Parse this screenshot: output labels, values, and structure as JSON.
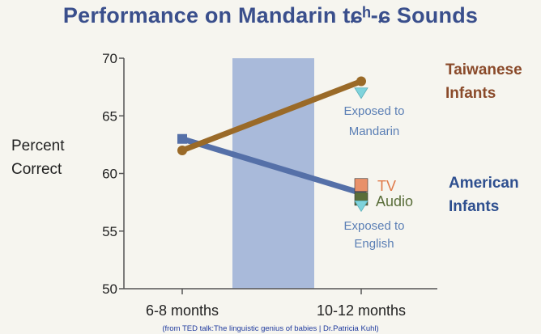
{
  "chart_data": {
    "type": "line",
    "title": "Performance on Mandarin tɕʰ-ɕ Sounds",
    "ylabel_lines": [
      "Percent",
      "Correct"
    ],
    "xlabel": "",
    "categories": [
      "6-8 months",
      "10-12 months"
    ],
    "ylim": [
      50,
      70
    ],
    "yticks": [
      50,
      55,
      60,
      65,
      70
    ],
    "grid": false,
    "shaded_region": "between 6-8 months and 10-12 months",
    "series": [
      {
        "name_lines": [
          "Taiwanese",
          "Infants"
        ],
        "color": "#9a6a28",
        "label_color": "#8a4a2a",
        "values": [
          62.0,
          68.0
        ]
      },
      {
        "name_lines": [
          "American",
          "Infants"
        ],
        "color": "#5570a8",
        "label_color": "#2e4f8f",
        "values": [
          63.0,
          58.3
        ]
      }
    ],
    "extra_points": [
      {
        "name": "Exposed to Mandarin",
        "x": "10-12 months",
        "y": 67.0,
        "shape": "triangle",
        "color": "#7fd3dc"
      },
      {
        "name": "TV",
        "x": "10-12 months",
        "y": 59.0,
        "shape": "square",
        "color": "#e8916a"
      },
      {
        "name": "Audio",
        "x": "10-12 months",
        "y": 57.8,
        "shape": "square",
        "color": "#5a6e3a"
      },
      {
        "name": "Exposed to English",
        "x": "10-12 months",
        "y": 57.2,
        "shape": "triangle",
        "color": "#7fd3dc"
      }
    ],
    "annotations": {
      "mandarin_lines": [
        "Exposed to",
        "Mandarin"
      ],
      "tv": "TV",
      "audio": "Audio",
      "english_lines": [
        "Exposed to",
        "English"
      ]
    }
  },
  "citation": "(from TED talk:The linguistic genius of babies | Dr.Patricia Kuhl)",
  "colors": {
    "title": "#3a4f8c",
    "shade": "#a4b6d8",
    "axis": "#555555",
    "annotation": "#5b7fb5",
    "tv_text": "#e07a4a",
    "audio_text": "#5a6e3a",
    "citation": "#1f3a9e"
  }
}
